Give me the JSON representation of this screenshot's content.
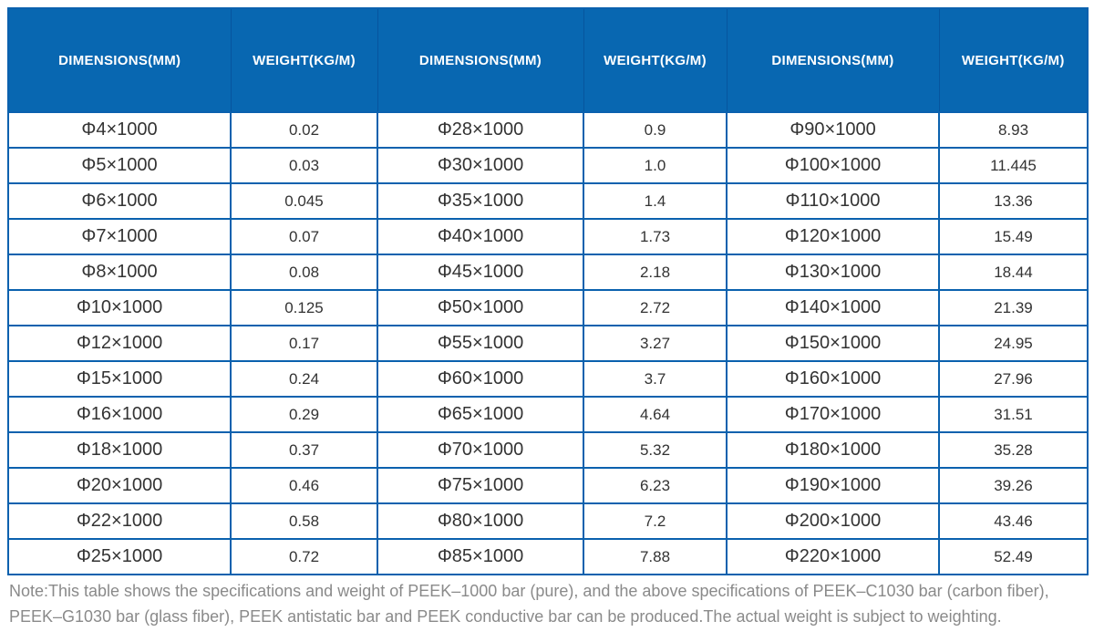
{
  "table": {
    "columns": [
      "DIMENSIONS(MM)",
      "WEIGHT(KG/M)",
      "DIMENSIONS(MM)",
      "WEIGHT(KG/M)",
      "DIMENSIONS(MM)",
      "WEIGHT(KG/M)"
    ],
    "rows": [
      [
        "Φ4×1000",
        "0.02",
        "Φ28×1000",
        "0.9",
        "Φ90×1000",
        "8.93"
      ],
      [
        "Φ5×1000",
        "0.03",
        "Φ30×1000",
        "1.0",
        "Φ100×1000",
        "11.445"
      ],
      [
        "Φ6×1000",
        "0.045",
        "Φ35×1000",
        "1.4",
        "Φ110×1000",
        "13.36"
      ],
      [
        "Φ7×1000",
        "0.07",
        "Φ40×1000",
        "1.73",
        "Φ120×1000",
        "15.49"
      ],
      [
        "Φ8×1000",
        "0.08",
        "Φ45×1000",
        "2.18",
        "Φ130×1000",
        "18.44"
      ],
      [
        "Φ10×1000",
        "0.125",
        "Φ50×1000",
        "2.72",
        "Φ140×1000",
        "21.39"
      ],
      [
        "Φ12×1000",
        "0.17",
        "Φ55×1000",
        "3.27",
        "Φ150×1000",
        "24.95"
      ],
      [
        "Φ15×1000",
        "0.24",
        "Φ60×1000",
        "3.7",
        "Φ160×1000",
        "27.96"
      ],
      [
        "Φ16×1000",
        "0.29",
        "Φ65×1000",
        "4.64",
        "Φ170×1000",
        "31.51"
      ],
      [
        "Φ18×1000",
        "0.37",
        "Φ70×1000",
        "5.32",
        "Φ180×1000",
        "35.28"
      ],
      [
        "Φ20×1000",
        "0.46",
        "Φ75×1000",
        "6.23",
        "Φ190×1000",
        "39.26"
      ],
      [
        "Φ22×1000",
        "0.58",
        "Φ80×1000",
        "7.2",
        "Φ200×1000",
        "43.46"
      ],
      [
        "Φ25×1000",
        "0.72",
        "Φ85×1000",
        "7.88",
        "Φ220×1000",
        "52.49"
      ]
    ]
  },
  "note": {
    "text": "Note:This table shows the specifications and weight of PEEK–1000 bar (pure), and the above specifications of PEEK–C1030 bar (carbon fiber), PEEK–G1030 bar (glass fiber), PEEK antistatic bar and PEEK conductive bar can be produced.The actual weight is subject to weighting."
  },
  "colors": {
    "header_bg": "#0867b1",
    "header_text": "#ffffff",
    "border": "#0a61ae",
    "cell_text": "#333333",
    "note_text": "#8a8a8a"
  }
}
